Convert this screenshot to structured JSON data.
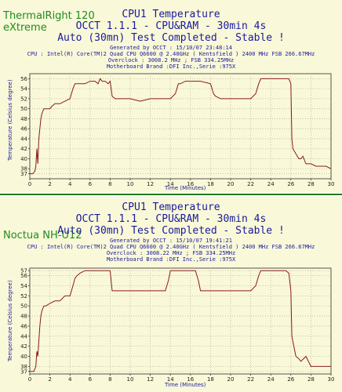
{
  "chart_data": [
    {
      "type": "line",
      "cooler_label": [
        "ThermalRight 120",
        "eXtreme"
      ],
      "title": "CPU1 Temperature",
      "subtitle_lines": [
        "OCCT 1.1.1 - CPU&RAM - 30min 4s",
        "Auto (30mn) Test Completed - Stable !"
      ],
      "meta_lines": [
        "Generated by OCCT : 15/10/07 23:48:14",
        "CPU : Intel(R) Core(TM)2 Quad CPU Q6600 @ 2.40GHz ( Kentsfield ) 2400 MHz FSB 266.67MHz",
        "Overclock : 3008.2 MHz ; FSB 334.25MHz",
        "Motherboard Brand :DFI Inc.,Serie :975X"
      ],
      "xlabel": "Time (Minutes)",
      "ylabel": "Temperature (Celsius degree)",
      "xlim": [
        0,
        30
      ],
      "ylim": [
        36,
        57
      ],
      "xticks": [
        0,
        2,
        4,
        6,
        8,
        10,
        12,
        14,
        16,
        18,
        20,
        22,
        24,
        26,
        28,
        30
      ],
      "yticks": [
        37,
        38,
        40,
        42,
        44,
        46,
        48,
        50,
        52,
        54,
        56
      ],
      "grid": true,
      "line_color": "#8b1a1a",
      "series": [
        {
          "x": [
            0,
            0.3,
            0.5,
            0.6,
            0.7,
            0.8,
            0.9,
            1.0,
            1.1,
            1.2,
            1.4,
            1.6,
            2.0,
            2.2,
            2.5,
            3.0,
            3.5,
            4.0,
            4.3,
            4.5,
            4.7,
            5.0,
            5.5,
            6.0,
            6.5,
            6.8,
            7.0,
            7.2,
            7.5,
            7.8,
            8.0,
            8.2,
            8.5,
            9.0,
            10.0,
            11.0,
            12.0,
            13.0,
            14.0,
            14.5,
            14.8,
            15.0,
            15.5,
            16.0,
            17.0,
            18.0,
            18.3,
            18.5,
            19.0,
            20.0,
            21.0,
            22.0,
            22.5,
            22.8,
            23.0,
            23.5,
            24.0,
            25.0,
            25.8,
            26.0,
            26.1,
            26.2,
            26.5,
            26.8,
            27.0,
            27.2,
            27.5,
            28.0,
            28.5,
            29.0,
            29.5,
            30.0
          ],
          "y": [
            37,
            37,
            37.5,
            38.5,
            42,
            39,
            44,
            46,
            48,
            49,
            50,
            50,
            50,
            50.5,
            51,
            51,
            51.5,
            52,
            54,
            55,
            55,
            55,
            55,
            55.5,
            55.5,
            55,
            56,
            55.5,
            55.5,
            55,
            55.5,
            52.5,
            52,
            52,
            52,
            51.5,
            52,
            52,
            52,
            53,
            55,
            55,
            55.5,
            55.5,
            55.5,
            55,
            53,
            52.5,
            52,
            52,
            52,
            52,
            53,
            55,
            56,
            56,
            56,
            56,
            56,
            55,
            44,
            42,
            41,
            40,
            40,
            40.5,
            39,
            39,
            38.5,
            38.5,
            38.5,
            38
          ]
        }
      ]
    },
    {
      "type": "line",
      "cooler_label": [
        "Noctua NH-U12"
      ],
      "title": "CPU1 Temperature",
      "subtitle_lines": [
        "OCCT 1.1.1 - CPU&RAM - 30min 4s",
        "Auto (30mn) Test Completed - Stable !"
      ],
      "meta_lines": [
        "Generated by OCCT : 15/10/07 19:41:21",
        "CPU : Intel(R) Core(TM)2 Quad CPU Q6600 @ 2.40GHz ( Kentsfield ) 2400 MHz FSB 266.67MHz",
        "Overclock : 3008.22 MHz ; FSB 334.25MHz",
        "Motherboard Brand :DFI Inc.,Serie :975X"
      ],
      "xlabel": "Time (Minutes)",
      "ylabel": "Temperature (Celsius degree)",
      "xlim": [
        0,
        30
      ],
      "ylim": [
        36.5,
        57.5
      ],
      "xticks": [
        0,
        2,
        4,
        6,
        8,
        10,
        12,
        14,
        16,
        18,
        20,
        22,
        24,
        26,
        28,
        30
      ],
      "yticks": [
        37,
        38,
        40,
        42,
        44,
        46,
        48,
        50,
        52,
        54,
        56,
        57
      ],
      "grid": true,
      "line_color": "#8b1a1a",
      "series": [
        {
          "x": [
            0,
            0.4,
            0.6,
            0.7,
            0.8,
            0.9,
            1.0,
            1.1,
            1.2,
            1.4,
            1.6,
            2.0,
            2.5,
            3.0,
            3.5,
            4.0,
            4.3,
            4.5,
            4.7,
            5.0,
            5.5,
            6.0,
            6.5,
            7.0,
            7.5,
            8.0,
            8.2,
            8.5,
            9.0,
            10.0,
            11.0,
            12.0,
            13.0,
            13.5,
            13.8,
            14.0,
            15.0,
            16.0,
            16.5,
            16.8,
            17.0,
            18.0,
            19.0,
            20.0,
            21.0,
            22.0,
            22.5,
            22.8,
            23.0,
            24.0,
            25.0,
            25.5,
            25.8,
            26.0,
            26.1,
            26.3,
            26.5,
            26.8,
            27.0,
            27.5,
            28.0,
            28.5,
            29.0,
            29.5,
            30.0
          ],
          "y": [
            37,
            37,
            38,
            41,
            40,
            43,
            46,
            48,
            49,
            50,
            50,
            50.5,
            51,
            51,
            52,
            52,
            54,
            55.5,
            56,
            56.5,
            57,
            57,
            57,
            57,
            57,
            57,
            53,
            53,
            53,
            53,
            53,
            53,
            53,
            53,
            55,
            57,
            57,
            57,
            57,
            55,
            53,
            53,
            53,
            53,
            53,
            53,
            54,
            56,
            57,
            57,
            57,
            57,
            56.5,
            53,
            44,
            42,
            40,
            39.5,
            39,
            40,
            38,
            38,
            38,
            38,
            38
          ]
        }
      ]
    }
  ]
}
